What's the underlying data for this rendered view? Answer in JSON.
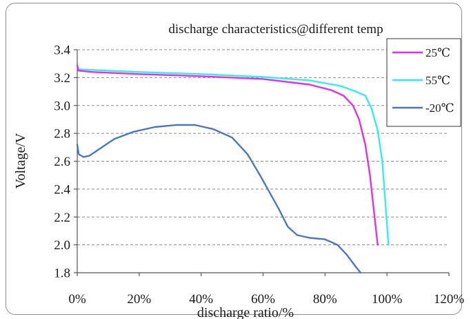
{
  "chart_data": {
    "type": "line",
    "title": "discharge characteristics@different temp",
    "xlabel": "discharge ratio/%",
    "ylabel": "Voltage/V",
    "xlim": [
      0,
      120
    ],
    "ylim": [
      1.8,
      3.4
    ],
    "xticks": [
      0,
      20,
      40,
      60,
      80,
      100,
      120
    ],
    "xtick_labels": [
      "0%",
      "20%",
      "40%",
      "60%",
      "80%",
      "100%",
      "120%"
    ],
    "yticks": [
      1.8,
      2.0,
      2.2,
      2.4,
      2.6,
      2.8,
      3.0,
      3.2,
      3.4
    ],
    "ytick_labels": [
      "1.8",
      "2.0",
      "2.2",
      "2.4",
      "2.6",
      "2.8",
      "3.0",
      "3.2",
      "3.4"
    ],
    "grid": "horizontal-dashed",
    "legend_position": "top-right",
    "series": [
      {
        "name": "25℃",
        "color": "#e62ee6",
        "points": [
          [
            0,
            3.29
          ],
          [
            0.4,
            3.25
          ],
          [
            5,
            3.24
          ],
          [
            20,
            3.225
          ],
          [
            40,
            3.21
          ],
          [
            60,
            3.19
          ],
          [
            75,
            3.15
          ],
          [
            82,
            3.11
          ],
          [
            86,
            3.07
          ],
          [
            89,
            3.0
          ],
          [
            91,
            2.9
          ],
          [
            93,
            2.72
          ],
          [
            94.5,
            2.5
          ],
          [
            96,
            2.2
          ],
          [
            97,
            2.0
          ]
        ]
      },
      {
        "name": "55℃",
        "color": "#2ff0f0",
        "points": [
          [
            0,
            3.28
          ],
          [
            0.4,
            3.26
          ],
          [
            5,
            3.255
          ],
          [
            20,
            3.24
          ],
          [
            40,
            3.225
          ],
          [
            60,
            3.205
          ],
          [
            75,
            3.18
          ],
          [
            85,
            3.14
          ],
          [
            90,
            3.1
          ],
          [
            93,
            3.07
          ],
          [
            95,
            2.98
          ],
          [
            97,
            2.82
          ],
          [
            98.5,
            2.6
          ],
          [
            99.5,
            2.3
          ],
          [
            100.5,
            2.0
          ]
        ]
      },
      {
        "name": "-20℃",
        "color": "#4a78bd",
        "points": [
          [
            0,
            2.72
          ],
          [
            0.5,
            2.65
          ],
          [
            2,
            2.63
          ],
          [
            4,
            2.64
          ],
          [
            8,
            2.7
          ],
          [
            12,
            2.76
          ],
          [
            18,
            2.81
          ],
          [
            25,
            2.845
          ],
          [
            32,
            2.86
          ],
          [
            38,
            2.86
          ],
          [
            44,
            2.83
          ],
          [
            50,
            2.77
          ],
          [
            55,
            2.65
          ],
          [
            59,
            2.5
          ],
          [
            62,
            2.38
          ],
          [
            65,
            2.26
          ],
          [
            68,
            2.13
          ],
          [
            71,
            2.07
          ],
          [
            75,
            2.05
          ],
          [
            80,
            2.04
          ],
          [
            84,
            2.0
          ],
          [
            87,
            1.93
          ],
          [
            90,
            1.84
          ],
          [
            91.5,
            1.8
          ]
        ]
      }
    ]
  }
}
